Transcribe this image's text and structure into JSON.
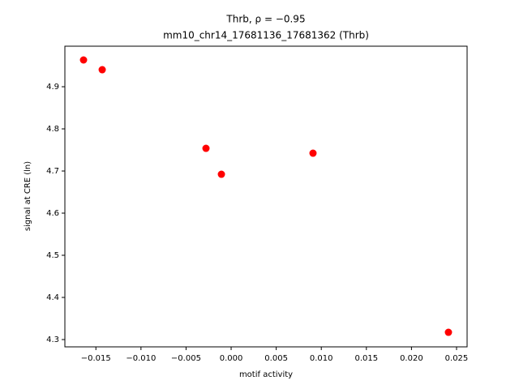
{
  "chart_data": {
    "type": "scatter",
    "title": "Thrb, ρ = −0.95",
    "subtitle": "mm10_chr14_17681136_17681362 (Thrb)",
    "x_label": "motif activity",
    "y_label": "signal at CRE (ln)",
    "series": [
      {
        "color": "#ff0000",
        "x": [
          -0.01637,
          -0.0143,
          -0.00279,
          -0.00108,
          0.00908,
          0.0241
        ],
        "values": [
          4.9635,
          4.9404,
          4.7538,
          4.6923,
          4.7423,
          4.3173
        ]
      }
    ],
    "xlim": [
      -0.01844,
      0.02617
    ],
    "ylim": [
      4.2827,
      4.9962
    ],
    "xticks": [
      {
        "value": -0.015,
        "label": "−0.015"
      },
      {
        "value": -0.01,
        "label": "−0.010"
      },
      {
        "value": -0.005,
        "label": "−0.005"
      },
      {
        "value": 0,
        "label": "0.000"
      },
      0.005,
      {
        "value": 0.01,
        "label": "0.010"
      },
      0.015,
      {
        "value": 0.02,
        "label": "0.020"
      },
      0.025
    ],
    "yticks": [
      4.3,
      4.4,
      4.5,
      4.6,
      4.7,
      4.8,
      4.9
    ],
    "grid": false
  }
}
